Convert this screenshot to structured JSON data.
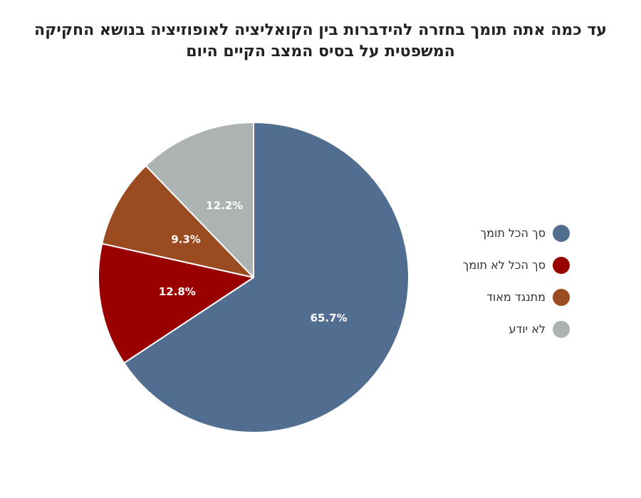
{
  "chart_data": {
    "type": "pie",
    "title_lines": [
      "עד כמה אתה תומך בחזרה להידברות בין הקואליציה לאופוזיציה בנושא החקיקה",
      "המשפטית על בסיס המצב הקיים היום"
    ],
    "start_angle_deg": 0,
    "direction": "clockwise",
    "legend_position": "right",
    "slices": [
      {
        "name": "סך הכל תומך",
        "value": 65.7,
        "label": "65.7%",
        "color": "#516e91"
      },
      {
        "name": "סך הכל לא תומך",
        "value": 12.8,
        "label": "12.8%",
        "color": "#990000"
      },
      {
        "name": "מתנגד מאוד",
        "value": 9.3,
        "label": "9.3%",
        "color": "#9b4b20"
      },
      {
        "name": "לא יודע",
        "value": 12.2,
        "label": "12.2%",
        "color": "#adb2b2"
      }
    ]
  }
}
